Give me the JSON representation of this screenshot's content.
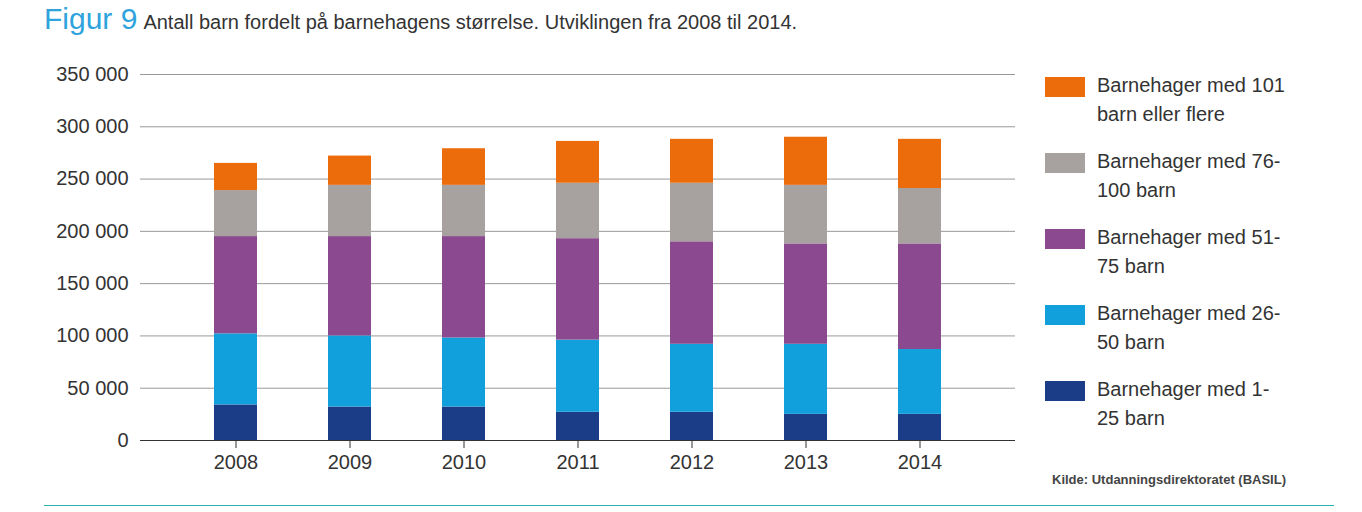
{
  "chart_data": {
    "type": "bar",
    "stacked": true,
    "title": "Figur 9",
    "subtitle": "Antall barn fordelt på barnehagens størrelse. Utviklingen fra 2008 til 2014.",
    "source": "Kilde: Utdanningsdirektoratet (BASIL)",
    "categories": [
      "2008",
      "2009",
      "2010",
      "2011",
      "2012",
      "2013",
      "2014"
    ],
    "series": [
      {
        "name": "Barnehager med 1-25 barn",
        "color": "#1b3d87",
        "values": [
          34000,
          32000,
          32000,
          27000,
          27000,
          25000,
          25000
        ]
      },
      {
        "name": "Barnehager med 26-50 barn",
        "color": "#12a0dc",
        "values": [
          68000,
          68000,
          66000,
          69000,
          65000,
          67000,
          62000
        ]
      },
      {
        "name": "Barnehager med 51-75 barn",
        "color": "#8b4a8f",
        "values": [
          93000,
          95000,
          97000,
          97000,
          98000,
          96000,
          101000
        ]
      },
      {
        "name": "Barnehager med 76-100 barn",
        "color": "#a7a19f",
        "values": [
          44000,
          49000,
          49000,
          53000,
          56000,
          56000,
          53000
        ]
      },
      {
        "name": "Barnehager med 101 barn eller flere",
        "color": "#ec6c0b",
        "values": [
          26000,
          28000,
          35000,
          40000,
          42000,
          46000,
          47000
        ]
      }
    ],
    "ylim": [
      0,
      350000
    ],
    "yticks": [
      0,
      {
        "value": 50000,
        "label": "50 000"
      },
      {
        "value": 100000,
        "label": "100 000"
      },
      {
        "value": 150000,
        "label": "150 000"
      },
      {
        "value": 200000,
        "label": "200 000"
      },
      {
        "value": 250000,
        "label": "250 000"
      },
      {
        "value": 300000,
        "label": "300 000"
      },
      {
        "value": 350000,
        "label": "350 000"
      }
    ],
    "grid": true,
    "legend": "right"
  }
}
